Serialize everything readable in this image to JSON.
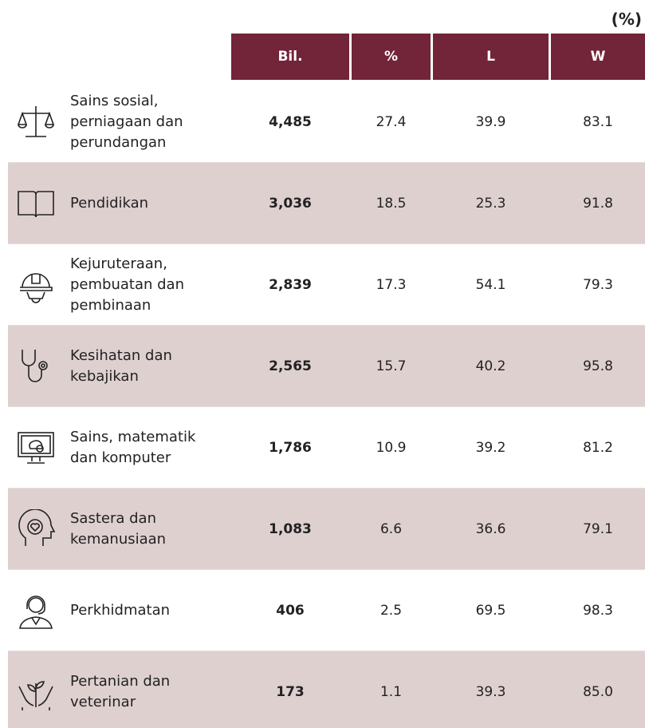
{
  "header": {
    "unit": "(%)",
    "columns": [
      "Bil.",
      "%",
      "L",
      "W"
    ]
  },
  "table": {
    "rows": [
      [
        "Sains sosial, perniagaan dan perundangan",
        "4,485",
        "27.4",
        "39.9",
        "83.1"
      ],
      [
        "Pendidikan",
        "3,036",
        "18.5",
        "25.3",
        "91.8"
      ],
      [
        "Kejuruteraan, pembuatan dan pembinaan",
        "2,839",
        "17.3",
        "54.1",
        "79.3"
      ],
      [
        "Kesihatan dan kebajikan",
        "2,565",
        "15.7",
        "40.2",
        "95.8"
      ],
      [
        "Sains, matematik dan komputer",
        "1,786",
        "10.9",
        "39.2",
        "81.2"
      ],
      [
        "Sastera dan kemanusiaan",
        "1,083",
        "6.6",
        "36.6",
        "79.1"
      ],
      [
        "Perkhidmatan",
        "406",
        "2.5",
        "69.5",
        "98.3"
      ],
      [
        "Pertanian dan veterinar",
        "173",
        "1.1",
        "39.3",
        "85.0"
      ]
    ]
  }
}
